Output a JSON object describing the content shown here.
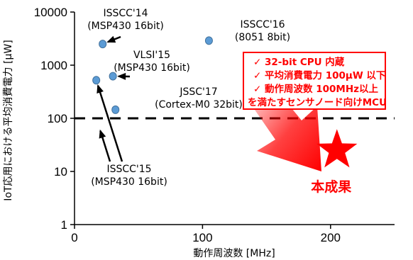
{
  "chart_data": {
    "type": "scatter",
    "xlabel": "動作周波数 [MHz]",
    "ylabel": "IoT応用における平均消費電力 [μW]",
    "xlim": [
      0,
      250
    ],
    "ylim": [
      1,
      10000
    ],
    "y_scale": "log",
    "x_ticks": [
      "0",
      "100",
      "200"
    ],
    "y_ticks": [
      "1",
      "10",
      "100",
      "1000",
      "10000"
    ],
    "x_tick_values": [
      0,
      100,
      200
    ],
    "y_tick_values": [
      1,
      10,
      100,
      1000,
      10000
    ],
    "grid": false,
    "legend": "none",
    "threshold": {
      "y": 100,
      "style": "dashed"
    },
    "points": [
      {
        "x": 22,
        "y": 2500,
        "label_lines": [
          "ISSCC'14",
          "(MSP430 16bit)"
        ]
      },
      {
        "x": 105,
        "y": 2900,
        "label_lines": [
          "ISSCC'16",
          "(8051 8bit)"
        ]
      },
      {
        "x": 30,
        "y": 620,
        "label_lines": [
          "VLSI'15",
          "(MSP430 16bit)"
        ]
      },
      {
        "x": 32,
        "y": 145,
        "label_lines": [
          "JSSC'17",
          "(Cortex-M0 32bit)"
        ]
      },
      {
        "x": 17,
        "y": 520,
        "label_lines": [
          "ISSCC'15",
          "(MSP430 16bit)"
        ]
      }
    ],
    "target": {
      "x": 205,
      "y": 25,
      "label": "本成果",
      "color": "#ff0000"
    },
    "callout": {
      "lines": [
        "✓ 32-bit CPU 内蔵",
        "✓ 平均消費電力 100μW 以下",
        "✓ 動作周波数 100MHz以上",
        "を満たすセンサノード向けMCU"
      ],
      "color": "#ff0000"
    },
    "colors": {
      "point_fill": "#5b9bd5",
      "point_stroke": "#41719c",
      "highlight": "#ff0000"
    }
  }
}
